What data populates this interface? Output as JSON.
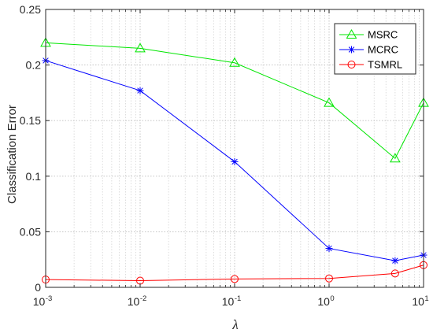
{
  "chart_data": {
    "type": "line",
    "xscale": "log",
    "xlabel": "λ",
    "ylabel": "Classification Error",
    "xlim": [
      0.001,
      10
    ],
    "ylim": [
      0,
      0.25
    ],
    "x_ticks": [
      0.001,
      0.01,
      0.1,
      1,
      10
    ],
    "x_tick_labels": [
      {
        "base": "10",
        "exp": "-3"
      },
      {
        "base": "10",
        "exp": "-2"
      },
      {
        "base": "10",
        "exp": "-1"
      },
      {
        "base": "10",
        "exp": "0"
      },
      {
        "base": "10",
        "exp": "1"
      }
    ],
    "y_ticks": [
      0,
      0.05,
      0.1,
      0.15,
      0.2,
      0.25
    ],
    "y_tick_labels": [
      "0",
      "0.05",
      "0.1",
      "0.15",
      "0.2",
      "0.25"
    ],
    "grid": true,
    "legend_position": "top-right",
    "x": [
      0.001,
      0.01,
      0.1,
      1,
      5,
      10
    ],
    "series": [
      {
        "name": "MSRC",
        "color": "#00e600",
        "marker": "triangle",
        "values": [
          0.22,
          0.215,
          0.202,
          0.166,
          0.116,
          0.166
        ]
      },
      {
        "name": "MCRC",
        "color": "#0000ff",
        "marker": "asterisk",
        "values": [
          0.204,
          0.177,
          0.113,
          0.035,
          0.024,
          0.029
        ]
      },
      {
        "name": "TSMRL",
        "color": "#ff0000",
        "marker": "circle",
        "values": [
          0.007,
          0.006,
          0.0075,
          0.008,
          0.0125,
          0.02
        ]
      }
    ]
  }
}
